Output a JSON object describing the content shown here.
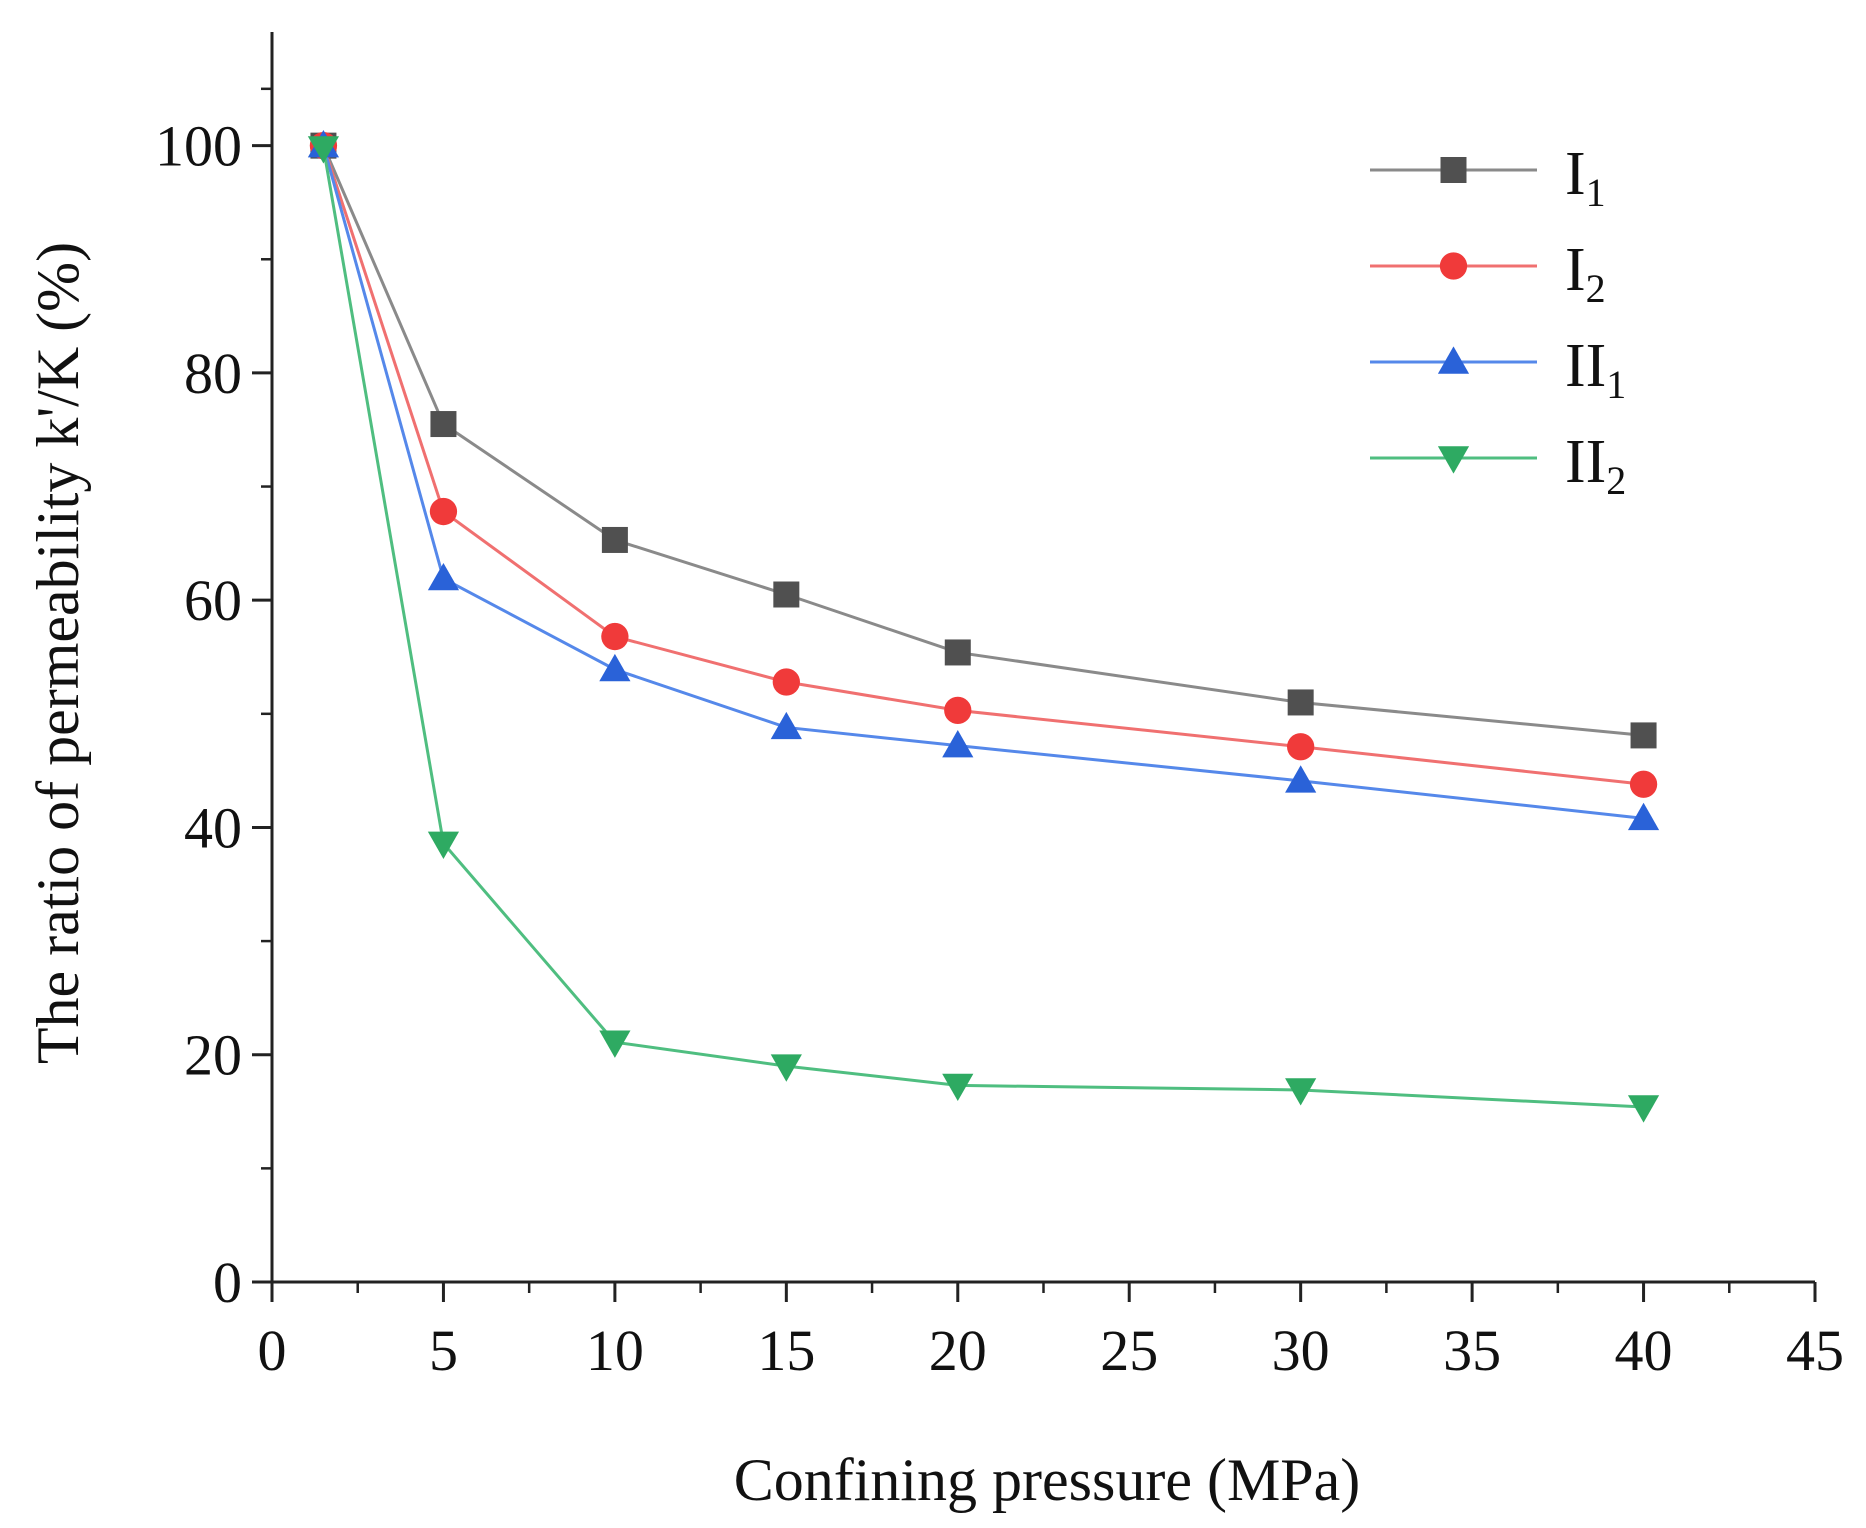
{
  "chart_data": {
    "type": "line",
    "title": "",
    "xlabel": "Confining pressure (MPa)",
    "ylabel": "The ratio of permeability k'/K (%)",
    "xlim": [
      0,
      45
    ],
    "ylim": [
      0,
      110
    ],
    "xticks": [
      0,
      5,
      10,
      15,
      20,
      25,
      30,
      35,
      40,
      45
    ],
    "yticks": [
      0,
      20,
      40,
      60,
      80,
      100
    ],
    "legend_position": "top-right",
    "x": [
      1.5,
      5,
      10,
      15,
      20,
      30,
      40
    ],
    "series": [
      {
        "name": "I",
        "subscript": "1",
        "marker": "square",
        "color": "#505050",
        "line_color": "#8a8a8a",
        "values": [
          100,
          75.5,
          65.3,
          60.5,
          55.4,
          51,
          48.1
        ]
      },
      {
        "name": "I",
        "subscript": "2",
        "marker": "circle",
        "color": "#f03a3a",
        "line_color": "#f07070",
        "values": [
          100,
          67.8,
          56.8,
          52.8,
          50.3,
          47.1,
          43.8
        ]
      },
      {
        "name": "II",
        "subscript": "1",
        "marker": "triangle-up",
        "color": "#2a62d8",
        "line_color": "#5588ea",
        "values": [
          100,
          61.9,
          53.9,
          48.8,
          47.2,
          44.1,
          40.8
        ]
      },
      {
        "name": "II",
        "subscript": "2",
        "marker": "triangle-down",
        "color": "#2eaa62",
        "line_color": "#4fbe80",
        "values": [
          99.8,
          38.6,
          21.1,
          19,
          17.3,
          16.9,
          15.4
        ]
      }
    ]
  }
}
